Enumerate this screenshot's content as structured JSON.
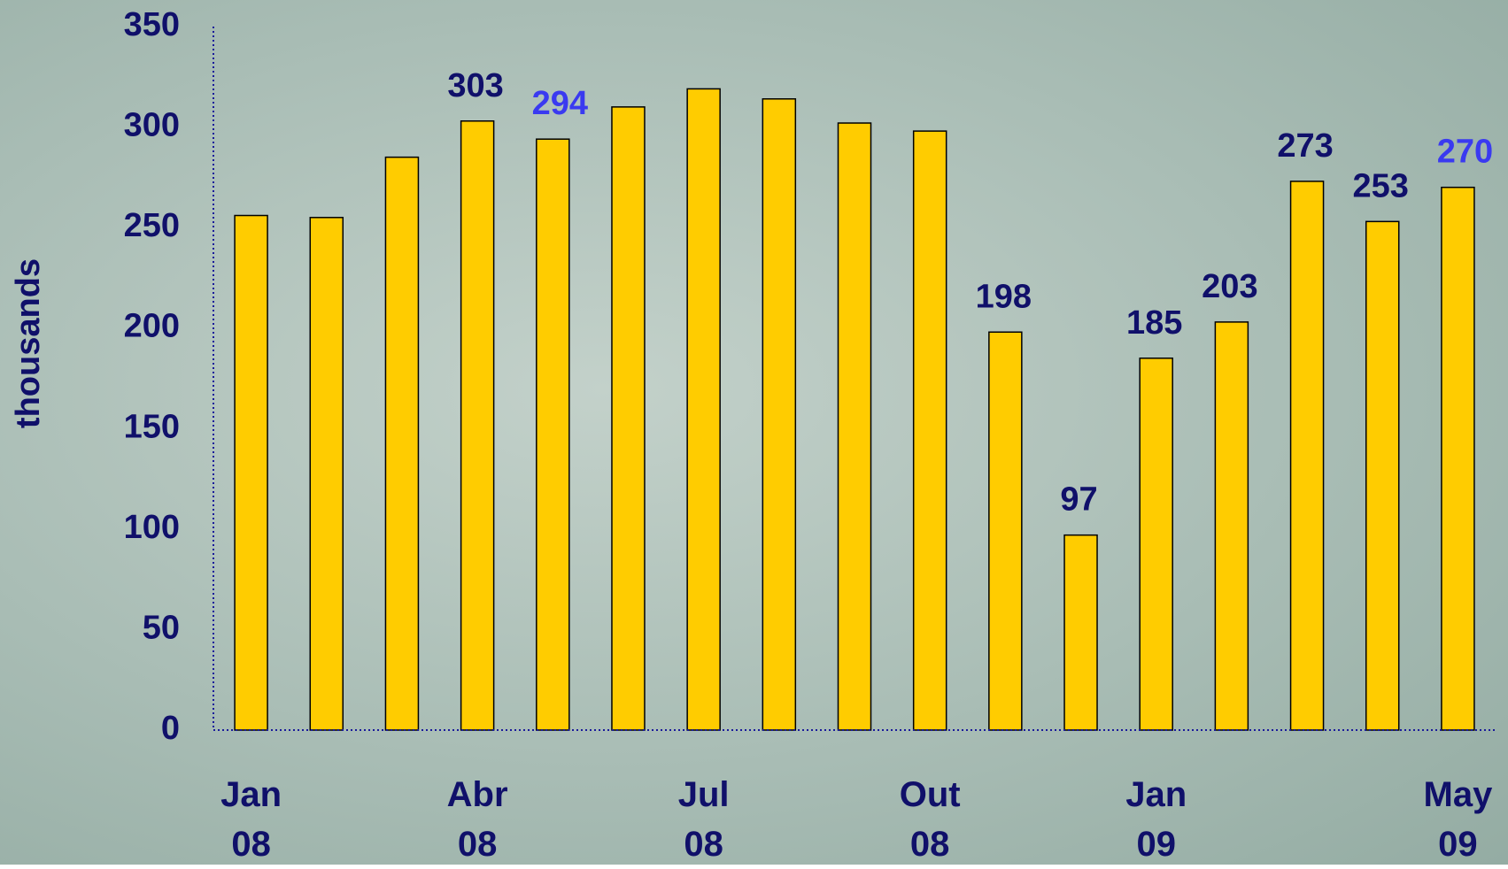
{
  "chart_data": {
    "type": "bar",
    "y_label": "thousands",
    "categories": [
      "Jan 08",
      null,
      null,
      "Abr 08",
      null,
      null,
      "Jul 08",
      null,
      null,
      "Out 08",
      null,
      null,
      "Jan 09",
      null,
      null,
      null,
      "May 09"
    ],
    "values": [
      256,
      255,
      285,
      303,
      294,
      310,
      319,
      314,
      302,
      298,
      198,
      97,
      185,
      203,
      273,
      253,
      270
    ],
    "value_label_colors": [
      null,
      null,
      null,
      "#10106a",
      "#3a3af0",
      null,
      null,
      null,
      null,
      null,
      "#10106a",
      "#10106a",
      "#10106a",
      "#10106a",
      "#10106a",
      "#10106a",
      "#3a3af0"
    ],
    "color": "#ffcc00",
    "ylim": [
      0,
      350
    ],
    "yticks": [
      0,
      50,
      100,
      150,
      200,
      250,
      300,
      350
    ]
  }
}
